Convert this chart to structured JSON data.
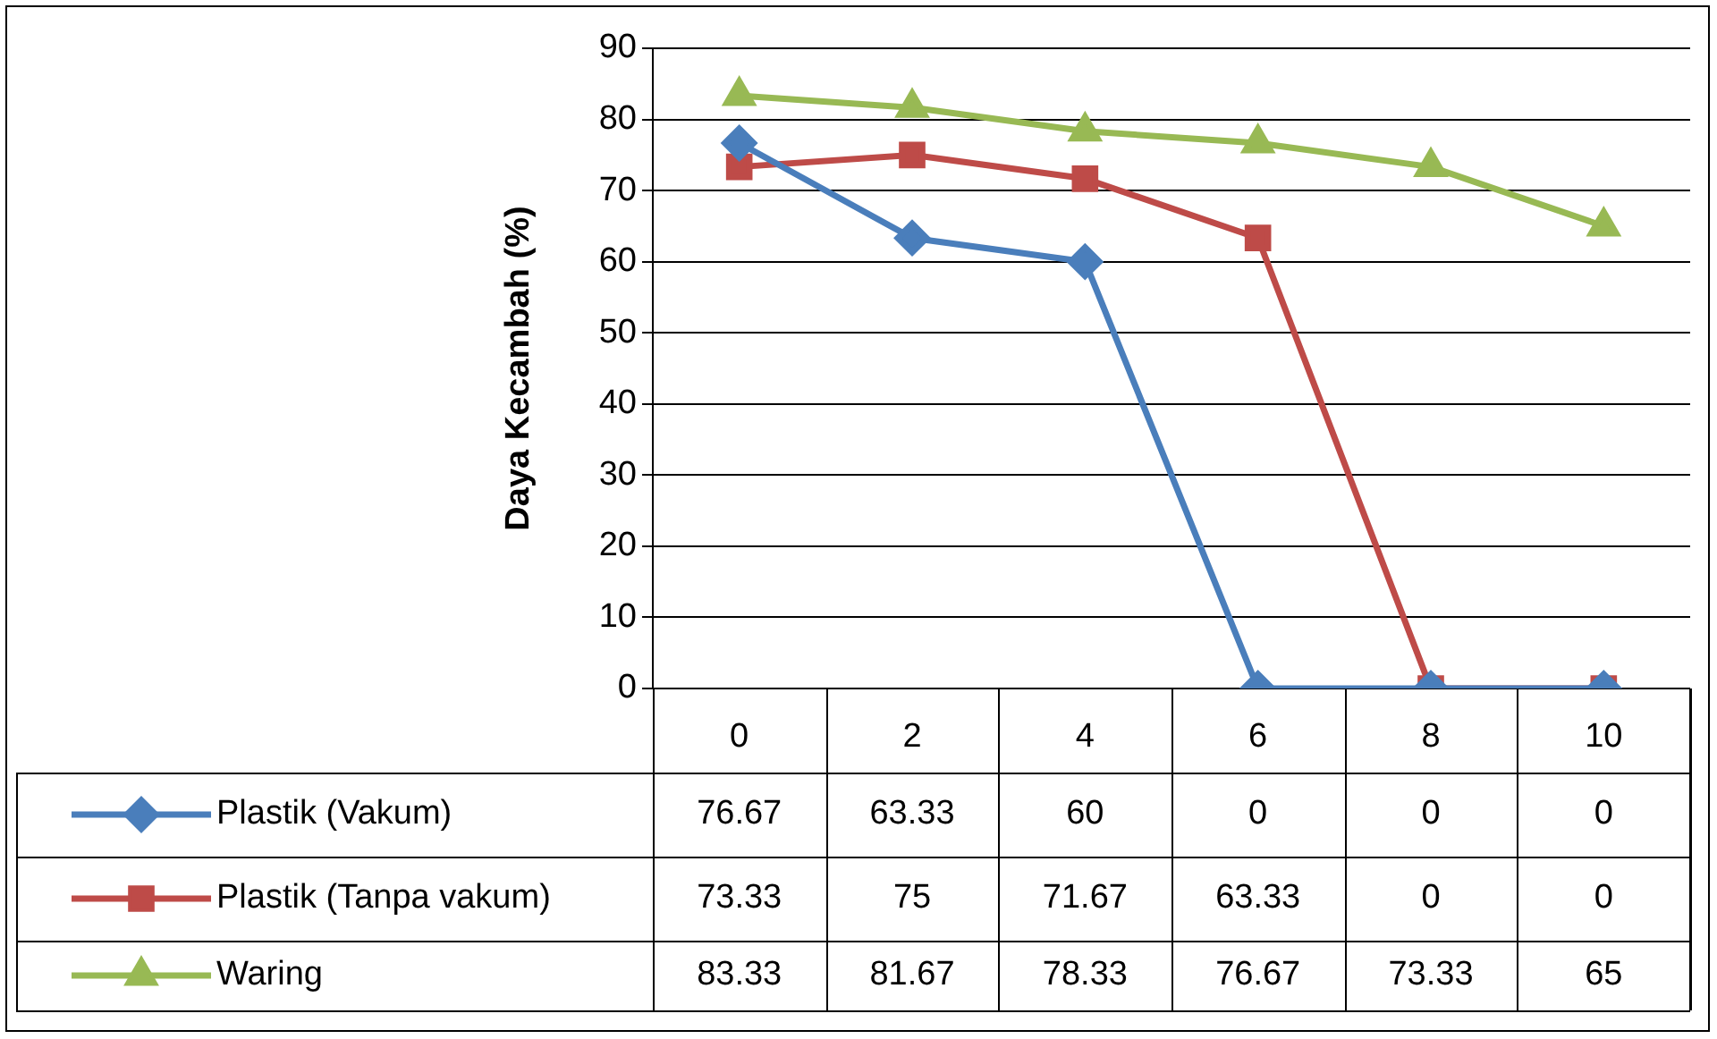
{
  "chart_data": {
    "type": "line",
    "ylabel": "Daya Kecambah (%)",
    "categories": [
      "0",
      "2",
      "4",
      "6",
      "8",
      "10"
    ],
    "series": [
      {
        "name": "Plastik (Vakum)",
        "color": "#4a7ebb",
        "marker": "diamond",
        "values": [
          76.67,
          63.33,
          60,
          0,
          0,
          0
        ]
      },
      {
        "name": "Plastik (Tanpa vakum)",
        "color": "#be4b48",
        "marker": "square",
        "values": [
          73.33,
          75,
          71.67,
          63.33,
          0,
          0
        ]
      },
      {
        "name": "Waring",
        "color": "#98b954",
        "marker": "triangle",
        "values": [
          83.33,
          81.67,
          78.33,
          76.67,
          73.33,
          65
        ]
      }
    ],
    "ylim": [
      0,
      90
    ],
    "yticks": [
      0,
      10,
      20,
      30,
      40,
      50,
      60,
      70,
      80,
      90
    ],
    "grid": "y",
    "legend": "bottom",
    "data_labels": true
  }
}
